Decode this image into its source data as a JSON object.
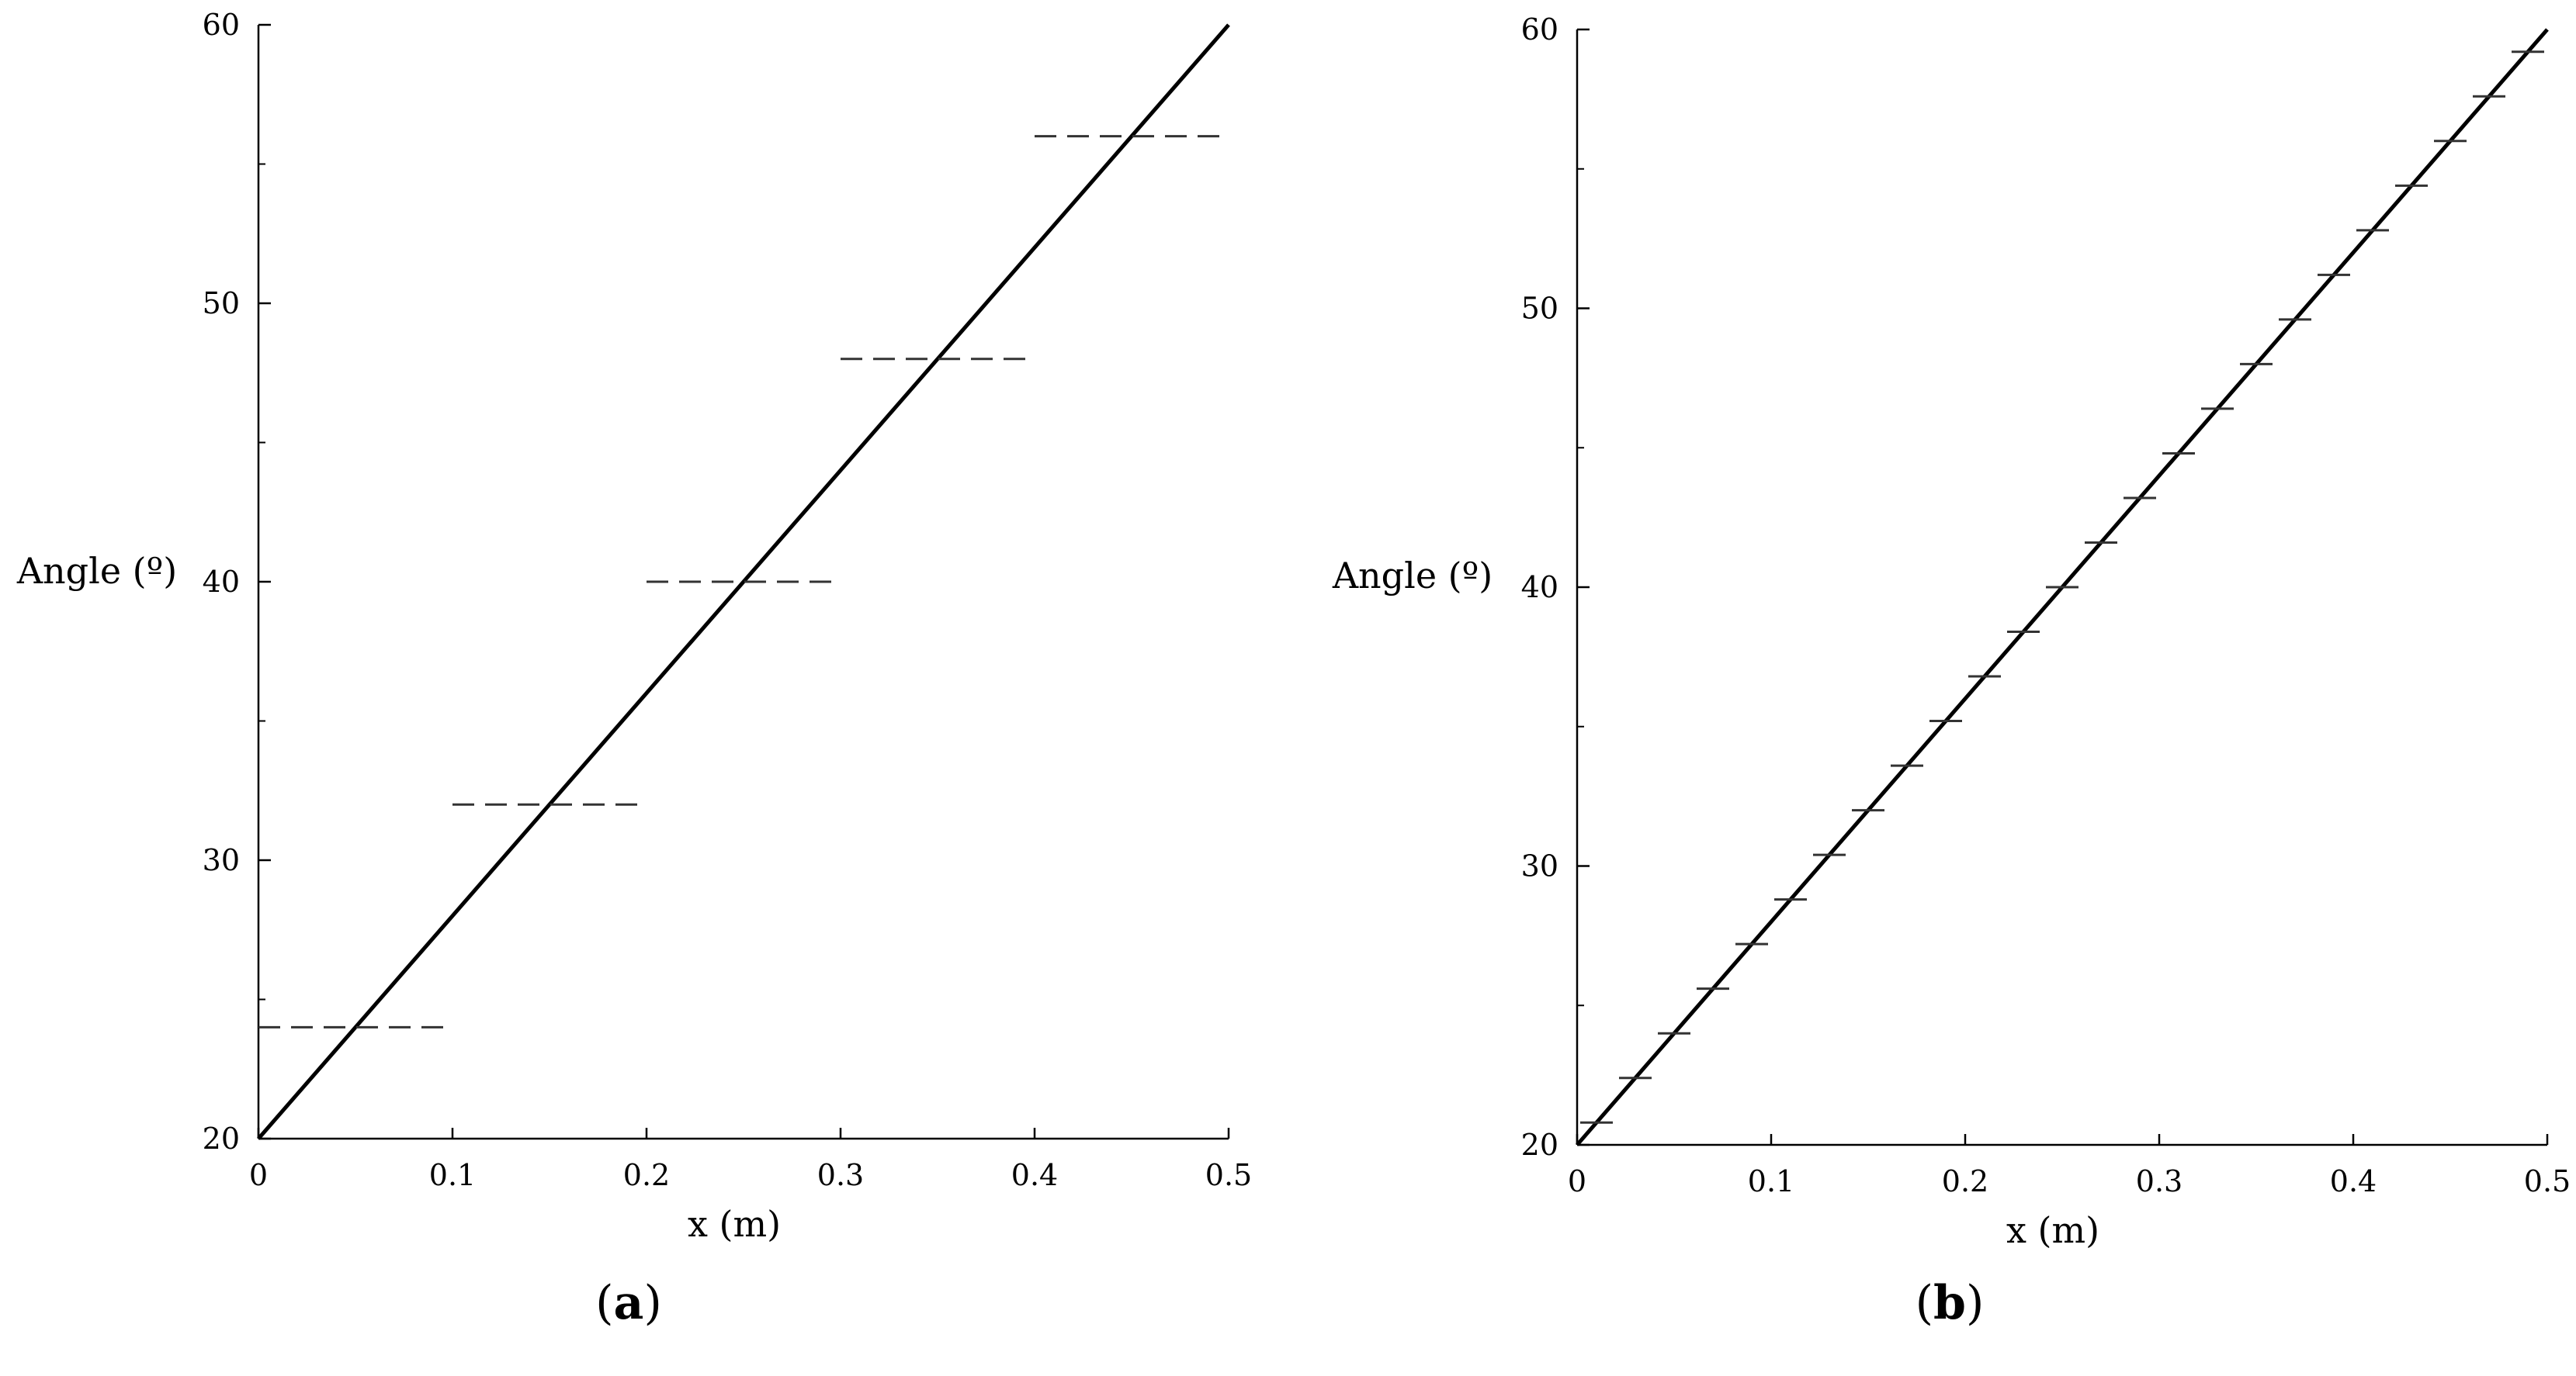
{
  "chart_data": [
    {
      "type": "line",
      "panel_label": "a",
      "xlabel": "x (m)",
      "ylabel": "Angle (º)",
      "xlim": [
        0,
        0.5
      ],
      "ylim": [
        20,
        60
      ],
      "xticks": [
        0,
        0.1,
        0.2,
        0.3,
        0.4,
        0.5
      ],
      "xtick_labels": [
        "0",
        "0.1",
        "0.2",
        "0.3",
        "0.4",
        "0.5"
      ],
      "yticks": [
        20,
        30,
        40,
        50,
        60
      ],
      "ytick_labels": [
        "20",
        "30",
        "40",
        "50",
        "60"
      ],
      "y_minor_ticks": [
        25,
        35,
        45,
        55
      ],
      "grid": false,
      "series": [
        {
          "style": "solid",
          "x": [
            0,
            0.5
          ],
          "y": [
            20,
            60
          ]
        },
        {
          "style": "dashed-steps",
          "steps": [
            {
              "x0": 0.0,
              "x1": 0.1,
              "y": 24
            },
            {
              "x0": 0.1,
              "x1": 0.2,
              "y": 32
            },
            {
              "x0": 0.2,
              "x1": 0.3,
              "y": 40
            },
            {
              "x0": 0.3,
              "x1": 0.4,
              "y": 48
            },
            {
              "x0": 0.4,
              "x1": 0.5,
              "y": 56
            }
          ]
        }
      ]
    },
    {
      "type": "line",
      "panel_label": "b",
      "xlabel": "x (m)",
      "ylabel": "Angle (º)",
      "xlim": [
        0,
        0.5
      ],
      "ylim": [
        20,
        60
      ],
      "xticks": [
        0,
        0.1,
        0.2,
        0.3,
        0.4,
        0.5
      ],
      "xtick_labels": [
        "0",
        "0.1",
        "0.2",
        "0.3",
        "0.4",
        "0.5"
      ],
      "yticks": [
        20,
        30,
        40,
        50,
        60
      ],
      "ytick_labels": [
        "20",
        "30",
        "40",
        "50",
        "60"
      ],
      "y_minor_ticks": [
        25,
        35,
        45,
        55
      ],
      "grid": false,
      "series": [
        {
          "style": "solid",
          "x": [
            0,
            0.5
          ],
          "y": [
            20,
            60
          ]
        },
        {
          "style": "short-steps",
          "steps": [
            {
              "x0": 0.0,
              "x1": 0.02,
              "y": 20.8
            },
            {
              "x0": 0.02,
              "x1": 0.04,
              "y": 22.4
            },
            {
              "x0": 0.04,
              "x1": 0.06,
              "y": 24.0
            },
            {
              "x0": 0.06,
              "x1": 0.08,
              "y": 25.6
            },
            {
              "x0": 0.08,
              "x1": 0.1,
              "y": 27.2
            },
            {
              "x0": 0.1,
              "x1": 0.12,
              "y": 28.8
            },
            {
              "x0": 0.12,
              "x1": 0.14,
              "y": 30.4
            },
            {
              "x0": 0.14,
              "x1": 0.16,
              "y": 32.0
            },
            {
              "x0": 0.16,
              "x1": 0.18,
              "y": 33.6
            },
            {
              "x0": 0.18,
              "x1": 0.2,
              "y": 35.2
            },
            {
              "x0": 0.2,
              "x1": 0.22,
              "y": 36.8
            },
            {
              "x0": 0.22,
              "x1": 0.24,
              "y": 38.4
            },
            {
              "x0": 0.24,
              "x1": 0.26,
              "y": 40.0
            },
            {
              "x0": 0.26,
              "x1": 0.28,
              "y": 41.6
            },
            {
              "x0": 0.28,
              "x1": 0.3,
              "y": 43.2
            },
            {
              "x0": 0.3,
              "x1": 0.32,
              "y": 44.8
            },
            {
              "x0": 0.32,
              "x1": 0.34,
              "y": 46.4
            },
            {
              "x0": 0.34,
              "x1": 0.36,
              "y": 48.0
            },
            {
              "x0": 0.36,
              "x1": 0.38,
              "y": 49.6
            },
            {
              "x0": 0.38,
              "x1": 0.4,
              "y": 51.2
            },
            {
              "x0": 0.4,
              "x1": 0.42,
              "y": 52.8
            },
            {
              "x0": 0.42,
              "x1": 0.44,
              "y": 54.4
            },
            {
              "x0": 0.44,
              "x1": 0.46,
              "y": 56.0
            },
            {
              "x0": 0.46,
              "x1": 0.48,
              "y": 57.6
            },
            {
              "x0": 0.48,
              "x1": 0.5,
              "y": 59.2
            }
          ]
        }
      ]
    }
  ]
}
